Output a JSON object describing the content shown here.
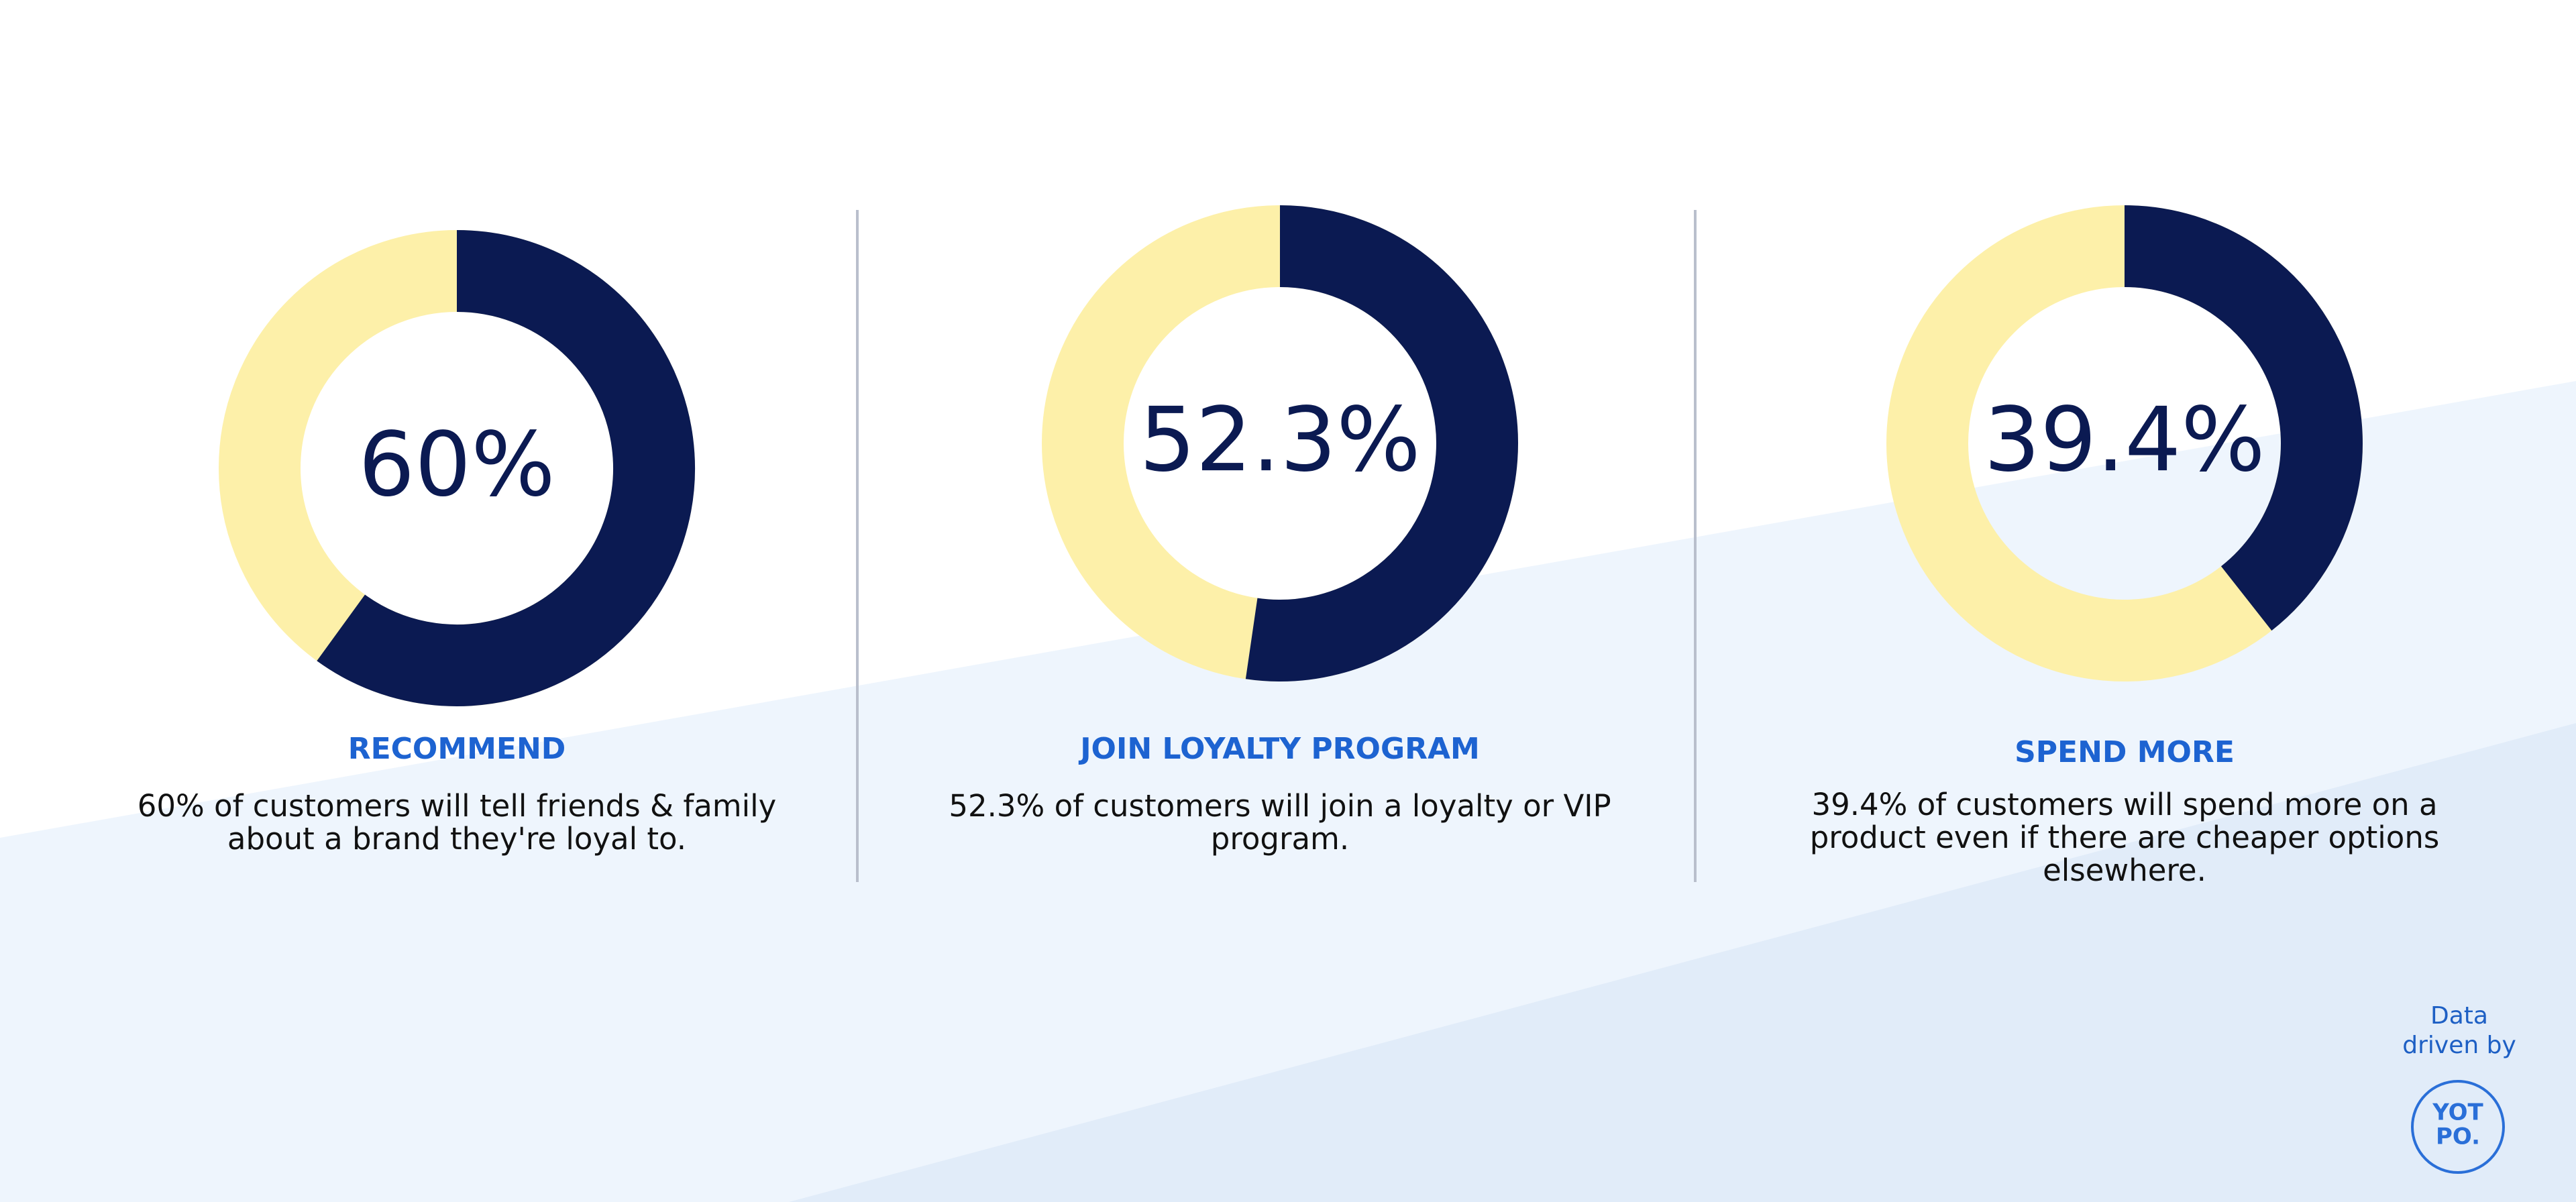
{
  "chart_data": [
    {
      "type": "donut",
      "values": [
        60
      ],
      "value_labels": [
        "60%"
      ],
      "color": "#0b1a52",
      "track_color": "#fdf0a9",
      "title": "RECOMMEND",
      "description": [
        "60% of customers will tell friends & family",
        "about a brand they're loyal to."
      ]
    },
    {
      "type": "donut",
      "values": [
        52.3
      ],
      "value_labels": [
        "52.3%"
      ],
      "color": "#0b1a52",
      "track_color": "#fdf0a9",
      "title": "JOIN LOYALTY PROGRAM",
      "description": [
        "52.3% of customers will join a loyalty or VIP",
        "program."
      ]
    },
    {
      "type": "donut",
      "values": [
        39.4
      ],
      "value_labels": [
        "39.4%"
      ],
      "color": "#0b1a52",
      "track_color": "#fdf0a9",
      "title": "SPEND MORE",
      "description": [
        "39.4% of customers will spend more on a",
        "product even if there are cheaper options",
        "elsewhere."
      ]
    }
  ],
  "footer": {
    "credit": [
      "Data",
      "driven by"
    ],
    "logo": [
      "YOT",
      "PO."
    ]
  }
}
